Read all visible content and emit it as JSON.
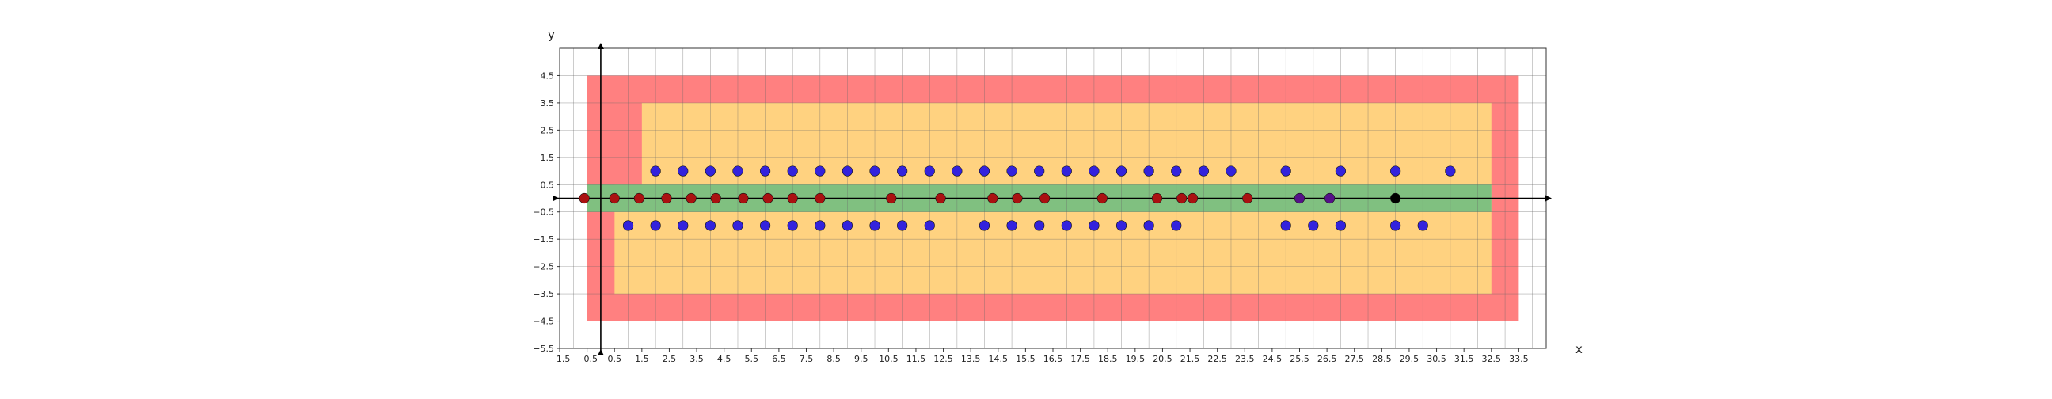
{
  "chart_data": {
    "type": "scatter",
    "title": "",
    "xlabel": "x",
    "ylabel": "y",
    "xlim": [
      -1.5,
      34.5
    ],
    "ylim": [
      -5.5,
      5.5
    ],
    "xticks": [
      "-1.5",
      "-0.5",
      "0.5",
      "1.5",
      "2.5",
      "3.5",
      "4.5",
      "5.5",
      "6.5",
      "7.5",
      "8.5",
      "9.5",
      "10.5",
      "11.5",
      "12.5",
      "13.5",
      "14.5",
      "15.5",
      "16.5",
      "17.5",
      "18.5",
      "19.5",
      "20.5",
      "21.5",
      "22.5",
      "23.5",
      "24.5",
      "25.5",
      "26.5",
      "27.5",
      "28.5",
      "29.5",
      "30.5",
      "31.5",
      "32.5",
      "33.5"
    ],
    "yticks": [
      "4.5",
      "3.5",
      "2.5",
      "1.5",
      "0.5",
      "-0.5",
      "-1.5",
      "-2.5",
      "-3.5",
      "-4.5",
      "-5.5"
    ],
    "grid": true,
    "regions": [
      {
        "x": [
          -0.5,
          33.5
        ],
        "y": [
          -4.5,
          4.5
        ],
        "color": "#ff8080"
      },
      {
        "x": [
          0.5,
          32.5
        ],
        "y": [
          -3.5,
          3.5
        ],
        "color": "#ffd280"
      },
      {
        "x": [
          -0.5,
          1.5
        ],
        "y": [
          0.5,
          3.5
        ],
        "color": "#ff8080"
      },
      {
        "x": [
          -0.5,
          0.5
        ],
        "y": [
          -3.5,
          -0.5
        ],
        "color": "#ff8080"
      },
      {
        "x": [
          -0.5,
          32.5
        ],
        "y": [
          -0.5,
          0.5
        ],
        "color": "#80c080"
      }
    ],
    "series": [
      {
        "color": "#3322dd",
        "x": [
          2,
          3,
          4,
          5,
          6,
          7,
          8,
          9,
          10,
          11,
          12,
          13,
          14,
          15,
          16,
          17,
          18,
          19,
          20,
          21,
          22,
          23,
          25,
          27,
          29,
          31,
          1,
          2,
          3,
          4,
          5,
          6,
          7,
          8,
          9,
          10,
          11,
          12,
          14,
          15,
          16,
          17,
          18,
          19,
          20,
          21,
          25,
          26,
          27,
          29,
          30
        ],
        "y": [
          1,
          1,
          1,
          1,
          1,
          1,
          1,
          1,
          1,
          1,
          1,
          1,
          1,
          1,
          1,
          1,
          1,
          1,
          1,
          1,
          1,
          1,
          1,
          1,
          1,
          1,
          -1,
          -1,
          -1,
          -1,
          -1,
          -1,
          -1,
          -1,
          -1,
          -1,
          -1,
          -1,
          -1,
          -1,
          -1,
          -1,
          -1,
          -1,
          -1,
          -1,
          -1,
          -1,
          -1,
          -1,
          -1
        ]
      },
      {
        "color": "#aa1111",
        "x": [
          -0.6,
          0.5,
          1.4,
          2.4,
          3.3,
          4.2,
          5.2,
          6.1,
          7.0,
          8.0,
          10.6,
          12.4,
          14.3,
          15.2,
          16.2,
          18.3,
          20.3,
          21.2,
          21.6,
          23.6
        ],
        "y": [
          0,
          0,
          0,
          0,
          0,
          0,
          0,
          0,
          0,
          0,
          0,
          0,
          0,
          0,
          0,
          0,
          0,
          0,
          0,
          0
        ]
      },
      {
        "color": "#551188",
        "x": [
          25.5,
          26.6
        ],
        "y": [
          0,
          0
        ]
      },
      {
        "color": "#000000",
        "x": [
          29.0
        ],
        "y": [
          0
        ]
      }
    ]
  }
}
